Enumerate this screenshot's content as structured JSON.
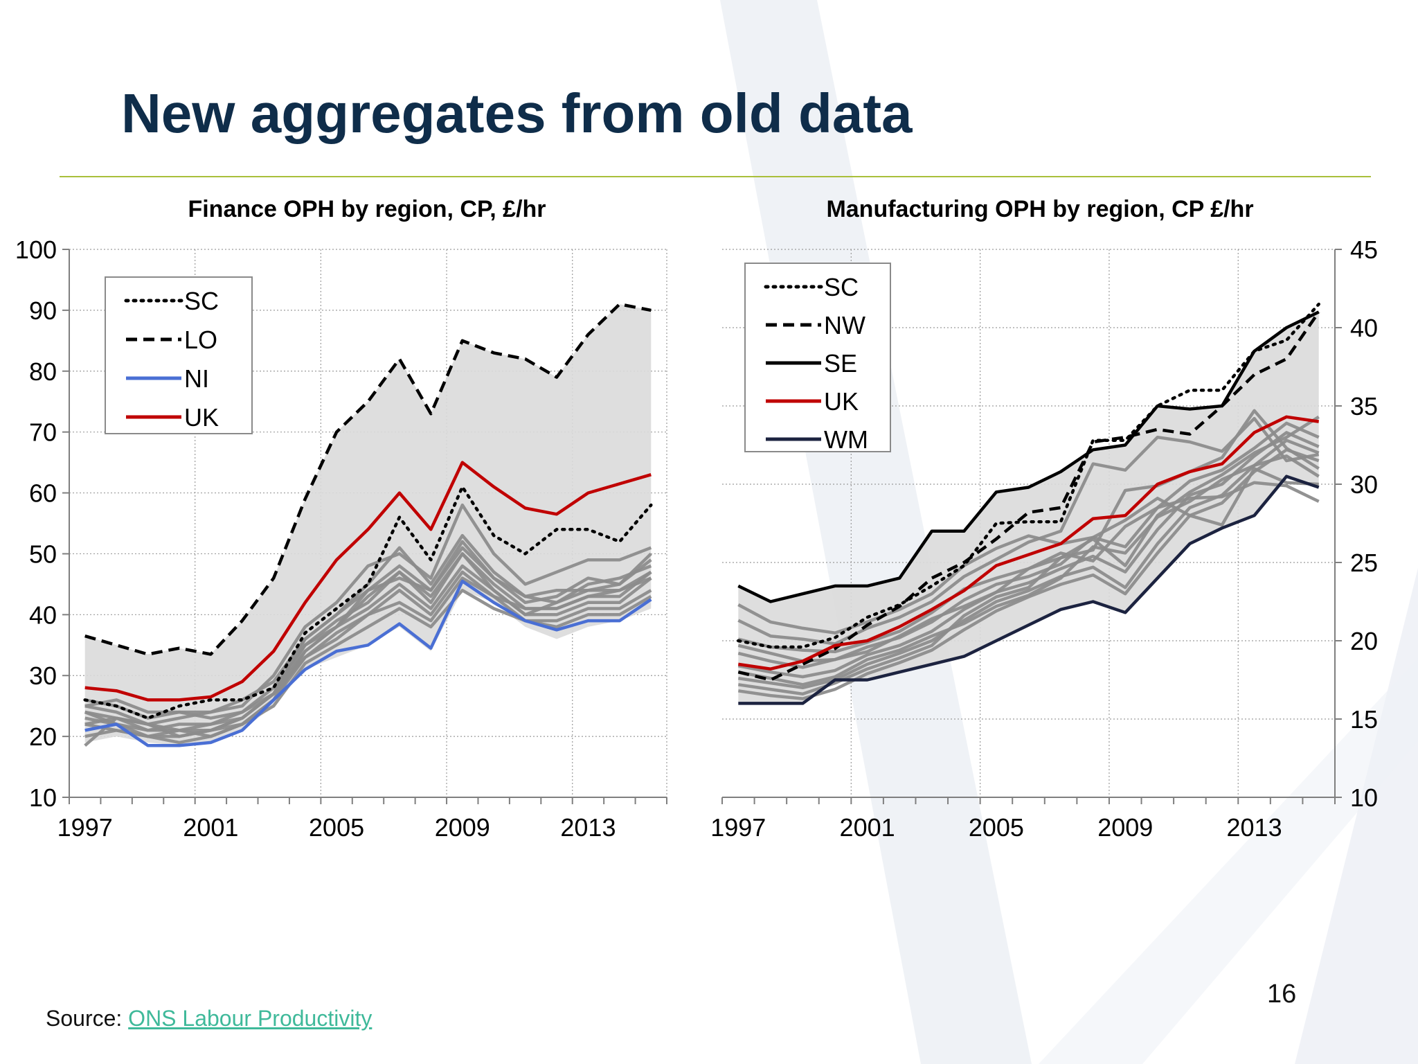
{
  "slide": {
    "title": "New aggregates from old data",
    "source_label": "Source: ",
    "source_link": "ONS Labour Productivity",
    "page_number": "16"
  },
  "colors": {
    "title": "#0f2d4a",
    "rule": "#a9bf3a",
    "range_fill": "#dadada",
    "grey_lines": "#8c8c8c",
    "uk": "#c00000",
    "ni": "#4a6fd4",
    "wm": "#1c2340",
    "black": "#000000",
    "link": "#3fb99a"
  },
  "chart_data": [
    {
      "type": "line",
      "title": "Finance OPH by region, CP, £/hr",
      "x": [
        1997,
        1998,
        1999,
        2000,
        2001,
        2002,
        2003,
        2004,
        2005,
        2006,
        2007,
        2008,
        2009,
        2010,
        2011,
        2012,
        2013,
        2014,
        2015
      ],
      "xticks": [
        1997,
        2001,
        2005,
        2009,
        2013
      ],
      "ylim": [
        10,
        100
      ],
      "yticks": [
        10,
        20,
        30,
        40,
        50,
        60,
        70,
        80,
        90,
        100
      ],
      "y_axis_side": "left",
      "grid": true,
      "legend_position": "top-left",
      "range_band": {
        "upper": [
          36.5,
          35,
          33.5,
          34.5,
          33.5,
          39,
          46,
          59,
          70,
          75,
          82,
          73,
          85,
          83,
          82,
          79,
          86,
          91,
          90
        ],
        "lower": [
          19,
          20,
          19,
          18.5,
          19,
          21,
          25,
          31,
          33,
          35,
          38,
          34,
          44,
          42,
          38,
          36,
          38,
          39,
          41
        ]
      },
      "series": [
        {
          "name": "SC",
          "style": "dotted",
          "color": "#000000",
          "values": [
            26,
            25,
            23,
            25,
            26,
            26,
            28,
            37,
            41,
            45,
            56,
            49,
            61,
            53,
            50,
            54,
            54,
            52,
            58
          ]
        },
        {
          "name": "LO",
          "style": "dashed",
          "color": "#000000",
          "values": [
            36.5,
            35,
            33.5,
            34.5,
            33.5,
            39,
            46,
            59,
            70,
            75,
            82,
            73,
            85,
            83,
            82,
            79,
            86,
            91,
            90
          ]
        },
        {
          "name": "NI",
          "style": "solid",
          "color": "#4a6fd4",
          "values": [
            21,
            22,
            18.5,
            18.5,
            19,
            21,
            26,
            31,
            34,
            35,
            38.5,
            34.5,
            45.5,
            42,
            39,
            37.5,
            39,
            39,
            42.5
          ]
        },
        {
          "name": "UK",
          "style": "solid",
          "color": "#c00000",
          "values": [
            28,
            27.5,
            26,
            26,
            26.5,
            29,
            34,
            42,
            49,
            54,
            60,
            54,
            65,
            61,
            57.5,
            56.5,
            60,
            61.5,
            63
          ]
        }
      ],
      "other_regions": [
        [
          25,
          24,
          22,
          23,
          24,
          26,
          29,
          36,
          40,
          45,
          51,
          45,
          53,
          47,
          43,
          44,
          44,
          45,
          50
        ],
        [
          24,
          23,
          21,
          22,
          22,
          24,
          28,
          35,
          39,
          42,
          47,
          42,
          50,
          45,
          41,
          41,
          43,
          43,
          47
        ],
        [
          23,
          22,
          20,
          21,
          21,
          23,
          27,
          34,
          38,
          41,
          45,
          41,
          48,
          44,
          40,
          40,
          42,
          42,
          46
        ],
        [
          22,
          21,
          20,
          20,
          21,
          22,
          26,
          33,
          37,
          40,
          44,
          40,
          47,
          43,
          39,
          39,
          41,
          41,
          44
        ],
        [
          26,
          25,
          23,
          24,
          24,
          25,
          30,
          38,
          42,
          48,
          50,
          46,
          58,
          50,
          45,
          47,
          49,
          49,
          51
        ],
        [
          25,
          26,
          24,
          24,
          23,
          24,
          27,
          33,
          36,
          40,
          42,
          39,
          46,
          43,
          41,
          41,
          43,
          44,
          46
        ],
        [
          24,
          22,
          21,
          21,
          20,
          22,
          25,
          32,
          35,
          38,
          41,
          38,
          44,
          41,
          39,
          38,
          40,
          40,
          43
        ],
        [
          20,
          21,
          20,
          19,
          20,
          22,
          26,
          34,
          38,
          43,
          47,
          43,
          50,
          44,
          40,
          42,
          44,
          44,
          47
        ],
        [
          22,
          23,
          22,
          21,
          22,
          23,
          27,
          35,
          38,
          44,
          46,
          44,
          52,
          46,
          43,
          42,
          45,
          46,
          48
        ],
        [
          18.5,
          23,
          22,
          20,
          21,
          23,
          27,
          36,
          40,
          44,
          48,
          44,
          51,
          46,
          42,
          43,
          46,
          45,
          49
        ]
      ]
    },
    {
      "type": "line",
      "title": "Manufacturing OPH by region, CP £/hr",
      "x": [
        1997,
        1998,
        1999,
        2000,
        2001,
        2002,
        2003,
        2004,
        2005,
        2006,
        2007,
        2008,
        2009,
        2010,
        2011,
        2012,
        2013,
        2014,
        2015
      ],
      "xticks": [
        1997,
        2001,
        2005,
        2009,
        2013
      ],
      "ylim": [
        10,
        45
      ],
      "yticks": [
        10,
        15,
        20,
        25,
        30,
        35,
        40,
        45
      ],
      "y_axis_side": "right",
      "grid": true,
      "legend_position": "top-left",
      "range_band": {
        "upper": [
          23.5,
          22.5,
          23,
          23.5,
          23.5,
          24,
          27,
          27,
          29.5,
          29.8,
          30.8,
          32.2,
          32.5,
          35,
          34.8,
          35,
          38.5,
          40,
          41
        ],
        "lower": [
          16,
          16,
          16,
          17.5,
          17.5,
          18,
          18.5,
          19,
          20,
          21,
          22,
          22.5,
          21.8,
          24,
          26.2,
          27.2,
          28,
          30.5,
          29.8
        ]
      },
      "series": [
        {
          "name": "SC",
          "style": "dotted",
          "color": "#000000",
          "values": [
            20,
            19.6,
            19.6,
            20.2,
            21.5,
            22.3,
            23.5,
            24.8,
            27.5,
            27.6,
            27.6,
            32.8,
            32.8,
            35,
            36,
            36,
            38.5,
            39.2,
            41.5
          ]
        },
        {
          "name": "NW",
          "style": "dashed",
          "color": "#000000",
          "values": [
            18,
            17.5,
            18.5,
            19.5,
            21,
            22.2,
            24,
            25,
            26.5,
            28.2,
            28.5,
            32.7,
            33,
            33.5,
            33.2,
            35,
            37,
            38,
            41
          ]
        },
        {
          "name": "SE",
          "style": "solid",
          "color": "#000000",
          "values": [
            23.5,
            22.5,
            23,
            23.5,
            23.5,
            24,
            27,
            27,
            29.5,
            29.8,
            30.8,
            32.2,
            32.5,
            35,
            34.8,
            35,
            38.5,
            40,
            41
          ]
        },
        {
          "name": "UK",
          "style": "solid",
          "color": "#c00000",
          "values": [
            18.5,
            18.2,
            18.7,
            19.7,
            20,
            20.9,
            22,
            23.2,
            24.8,
            25.5,
            26.2,
            27.8,
            28,
            30,
            30.8,
            31.3,
            33.3,
            34.3,
            34
          ]
        },
        {
          "name": "WM",
          "style": "solid",
          "color": "#1c2340",
          "values": [
            16,
            16,
            16,
            17.5,
            17.5,
            18,
            18.5,
            19,
            20,
            21,
            22,
            22.5,
            21.8,
            24,
            26.2,
            27.2,
            28,
            30.5,
            29.8
          ]
        }
      ],
      "other_regions": [
        [
          21.3,
          20.3,
          20.1,
          19.8,
          20.8,
          21.5,
          22.5,
          24.1,
          25.2,
          26.3,
          27.0,
          31.3,
          30.9,
          33.0,
          32.7,
          32.1,
          34.2,
          31.5,
          31.9
        ],
        [
          20.1,
          19.6,
          19.4,
          19.3,
          19.9,
          20.6,
          21.8,
          23.3,
          24.0,
          24.6,
          25.3,
          25.8,
          29.6,
          29.9,
          30.8,
          31.7,
          34.7,
          32.3,
          31.0
        ],
        [
          19.2,
          18.7,
          18.3,
          18.8,
          19.6,
          20.2,
          21.2,
          22.6,
          23.6,
          24.1,
          24.9,
          26.6,
          26.0,
          28.5,
          30.2,
          30.9,
          32.3,
          33.9,
          33.0
        ],
        [
          18.4,
          18.0,
          17.7,
          18.1,
          19.1,
          19.7,
          20.6,
          22.0,
          23.1,
          23.7,
          24.6,
          25.4,
          24.4,
          27.1,
          29.3,
          30.0,
          31.8,
          33.3,
          32.4
        ],
        [
          17.6,
          17.3,
          17.0,
          17.5,
          18.5,
          19.2,
          20.0,
          21.3,
          22.5,
          23.2,
          24.1,
          24.7,
          23.4,
          26.2,
          28.5,
          29.3,
          31.2,
          32.8,
          32.0
        ],
        [
          16.8,
          16.5,
          16.3,
          16.9,
          17.9,
          18.6,
          19.4,
          20.7,
          21.9,
          22.8,
          23.6,
          24.2,
          23.0,
          25.6,
          28.0,
          28.8,
          30.8,
          32.2,
          31.5
        ],
        [
          22.3,
          21.2,
          20.8,
          20.5,
          21.2,
          22.0,
          23.0,
          24.8,
          25.9,
          26.7,
          26.2,
          26.6,
          27.7,
          29.1,
          28.0,
          27.4,
          31.0,
          30.1,
          30.0
        ],
        [
          19.7,
          19.2,
          18.7,
          18.8,
          19.3,
          20.3,
          21.4,
          22.2,
          23.1,
          24.6,
          25.6,
          25.1,
          27.3,
          28.5,
          29.1,
          29.2,
          30.1,
          29.9,
          28.9
        ],
        [
          17.2,
          16.9,
          16.6,
          17.3,
          18.2,
          18.9,
          19.7,
          21.6,
          22.8,
          23.4,
          25.3,
          26.5,
          24.8,
          28.0,
          29.5,
          30.6,
          32.0,
          33.0,
          34.3
        ],
        [
          18.0,
          17.6,
          17.2,
          17.7,
          18.8,
          19.4,
          20.3,
          21.1,
          22.2,
          22.9,
          24.0,
          26.0,
          25.6,
          27.9,
          28.9,
          30.3,
          31.2,
          31.8,
          30.5
        ]
      ]
    }
  ]
}
